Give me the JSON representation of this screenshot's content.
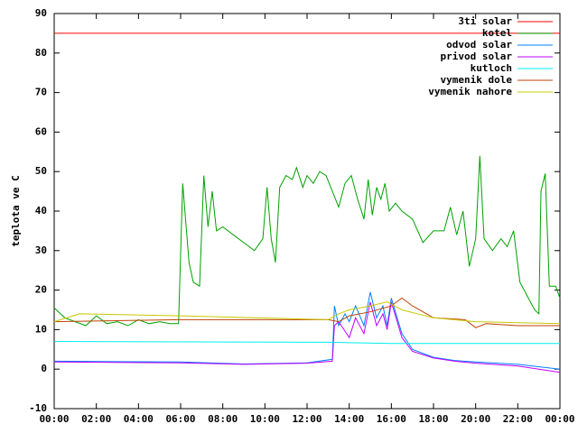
{
  "chart_data": {
    "type": "line",
    "ylabel": "teplota ve C",
    "xlim": [
      0,
      24
    ],
    "ylim": [
      -10,
      90
    ],
    "xticks": [
      {
        "value": 0,
        "label": "00:00"
      },
      {
        "value": 2,
        "label": "02:00"
      },
      {
        "value": 4,
        "label": "04:00"
      },
      {
        "value": 6,
        "label": "06:00"
      },
      {
        "value": 8,
        "label": "08:00"
      },
      {
        "value": 10,
        "label": "10:00"
      },
      {
        "value": 12,
        "label": "12:00"
      },
      {
        "value": 14,
        "label": "14:00"
      },
      {
        "value": 16,
        "label": "16:00"
      },
      {
        "value": 18,
        "label": "18:00"
      },
      {
        "value": 20,
        "label": "20:00"
      },
      {
        "value": 22,
        "label": "22:00"
      },
      {
        "value": 24,
        "label": "00:00"
      }
    ],
    "yticks": [
      -10,
      0,
      10,
      20,
      30,
      40,
      50,
      60,
      70,
      80,
      90
    ],
    "grid": false,
    "legend": "top-right",
    "series": [
      {
        "name": "3ti solar",
        "color": "#ff0000",
        "x": [
          0,
          24
        ],
        "values": [
          85,
          85
        ]
      },
      {
        "name": "kotel",
        "color": "#00a000",
        "x": [
          0,
          0.5,
          1,
          1.5,
          2,
          2.5,
          3,
          3.5,
          4,
          4.5,
          5,
          5.5,
          5.9,
          6.1,
          6.4,
          6.6,
          6.9,
          7.1,
          7.3,
          7.5,
          7.7,
          8,
          8.5,
          9,
          9.5,
          9.9,
          10.1,
          10.3,
          10.5,
          10.7,
          11,
          11.3,
          11.5,
          11.8,
          12,
          12.3,
          12.6,
          12.9,
          13.2,
          13.5,
          13.8,
          14.1,
          14.4,
          14.7,
          14.9,
          15.1,
          15.3,
          15.5,
          15.7,
          15.9,
          16.2,
          16.5,
          17,
          17.5,
          18,
          18.5,
          18.8,
          19.1,
          19.4,
          19.7,
          20,
          20.2,
          20.4,
          20.8,
          21.2,
          21.5,
          21.8,
          22.1,
          22.5,
          22.8,
          23,
          23.1,
          23.3,
          23.5,
          23.8,
          24
        ],
        "values": [
          15.5,
          13,
          12,
          11,
          13.5,
          11.5,
          12,
          11,
          12.5,
          11.5,
          12,
          11.5,
          11.5,
          47,
          27,
          22,
          21,
          49,
          36,
          45,
          35,
          36,
          34,
          32,
          30,
          33,
          46,
          33,
          27,
          46,
          49,
          48,
          51,
          46,
          49,
          47,
          50,
          49,
          45,
          41,
          47,
          49,
          43,
          38,
          48,
          39,
          46,
          43,
          47,
          40,
          42,
          40,
          38,
          32,
          35,
          35,
          41,
          34,
          40,
          26,
          33,
          54,
          33,
          30,
          33,
          31,
          35,
          22,
          18,
          15,
          14,
          45,
          49.5,
          21,
          21,
          18
        ]
      },
      {
        "name": "odvod solar",
        "color": "#0080ff",
        "x": [
          0,
          6,
          9,
          12,
          13.2,
          13.3,
          13.5,
          13.8,
          14,
          14.3,
          14.7,
          15,
          15.3,
          15.6,
          15.8,
          16,
          16.5,
          17,
          18,
          19,
          20,
          22,
          24
        ],
        "values": [
          2,
          1.8,
          1.3,
          1.6,
          2.5,
          16,
          11,
          14,
          12,
          16,
          11,
          19.5,
          13,
          16,
          11,
          18,
          9,
          5,
          3,
          2.2,
          1.8,
          1.2,
          0
        ]
      },
      {
        "name": "privod solar",
        "color": "#c000ff",
        "x": [
          0,
          6,
          9,
          12,
          13.2,
          13.3,
          13.5,
          14,
          14.3,
          14.7,
          15,
          15.3,
          15.6,
          15.8,
          16,
          16.5,
          17,
          18,
          19,
          20,
          22,
          24
        ],
        "values": [
          1.8,
          1.6,
          1.2,
          1.5,
          2,
          11,
          12,
          8,
          13,
          9,
          17,
          11,
          14,
          10,
          17,
          8,
          4.5,
          2.8,
          2,
          1.5,
          0.8,
          -0.8
        ]
      },
      {
        "name": "kutloch",
        "color": "#00eeee",
        "x": [
          0,
          13,
          16,
          24
        ],
        "values": [
          7,
          6.8,
          6.5,
          6.5
        ]
      },
      {
        "name": "vymenik dole",
        "color": "#c04000",
        "x": [
          0,
          6,
          13,
          13.5,
          14,
          15,
          16,
          16.5,
          17,
          18,
          19.5,
          20,
          20.5,
          22,
          24
        ],
        "values": [
          12,
          12.5,
          12.5,
          12,
          13.5,
          14.5,
          16,
          18,
          16,
          13,
          12.5,
          10.5,
          11.5,
          11,
          11
        ]
      },
      {
        "name": "vymenik nahore",
        "color": "#c8c800",
        "x": [
          0,
          1.2,
          6,
          13,
          13.5,
          14,
          15,
          15.8,
          16.5,
          18,
          20,
          24
        ],
        "values": [
          12,
          14,
          13.5,
          12.5,
          14,
          15,
          16,
          17,
          15,
          13,
          12,
          11.5
        ]
      }
    ]
  }
}
